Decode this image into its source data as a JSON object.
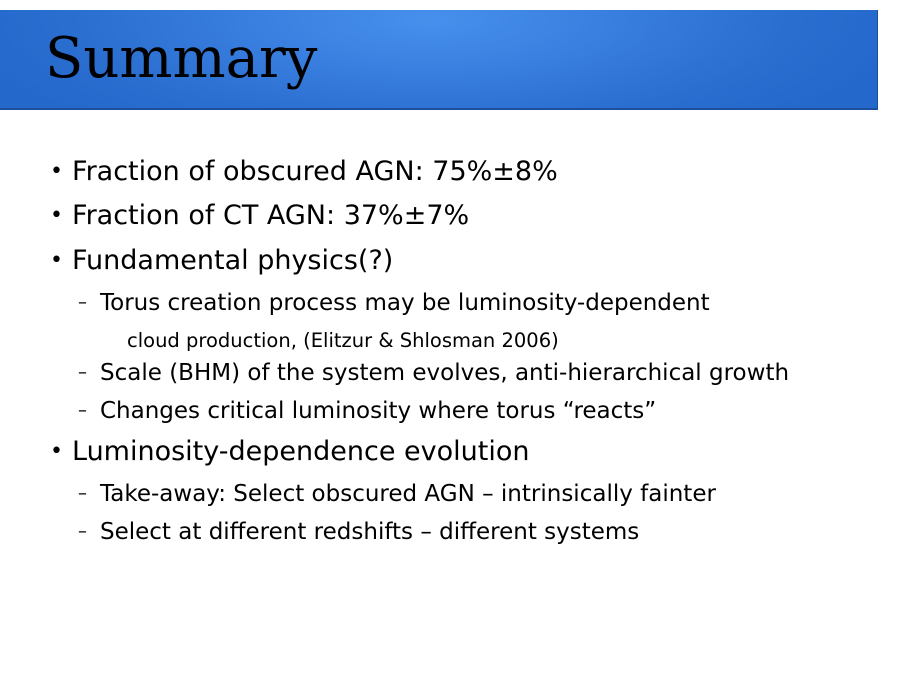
{
  "slide": {
    "title": "Summary",
    "bullet_marker": "•",
    "dash_marker": "–",
    "items": [
      {
        "level": 1,
        "text": "Fraction of obscured AGN: 75%±8%"
      },
      {
        "level": 1,
        "text": "Fraction of CT AGN: 37%±7%"
      },
      {
        "level": 1,
        "text": "Fundamental physics(?)"
      },
      {
        "level": 2,
        "text": "Torus creation process may be luminosity-dependent"
      },
      {
        "level": 3,
        "text": "cloud production, (Elitzur & Shlosman 2006)"
      },
      {
        "level": 2,
        "text": "Scale (BHM) of the system evolves, anti-hierarchical growth"
      },
      {
        "level": 2,
        "text": "Changes critical luminosity where torus “reacts”"
      },
      {
        "level": 1,
        "text": "Luminosity-dependence evolution"
      },
      {
        "level": 2,
        "text": "Take-away: Select obscured AGN – intrinsically fainter"
      },
      {
        "level": 2,
        "text": "Select at different redshifts – different systems"
      }
    ]
  },
  "colors": {
    "title_bar": "#2a6ed0",
    "title_bar_highlight": "#4790ec",
    "text": "#000000",
    "background": "#ffffff"
  }
}
